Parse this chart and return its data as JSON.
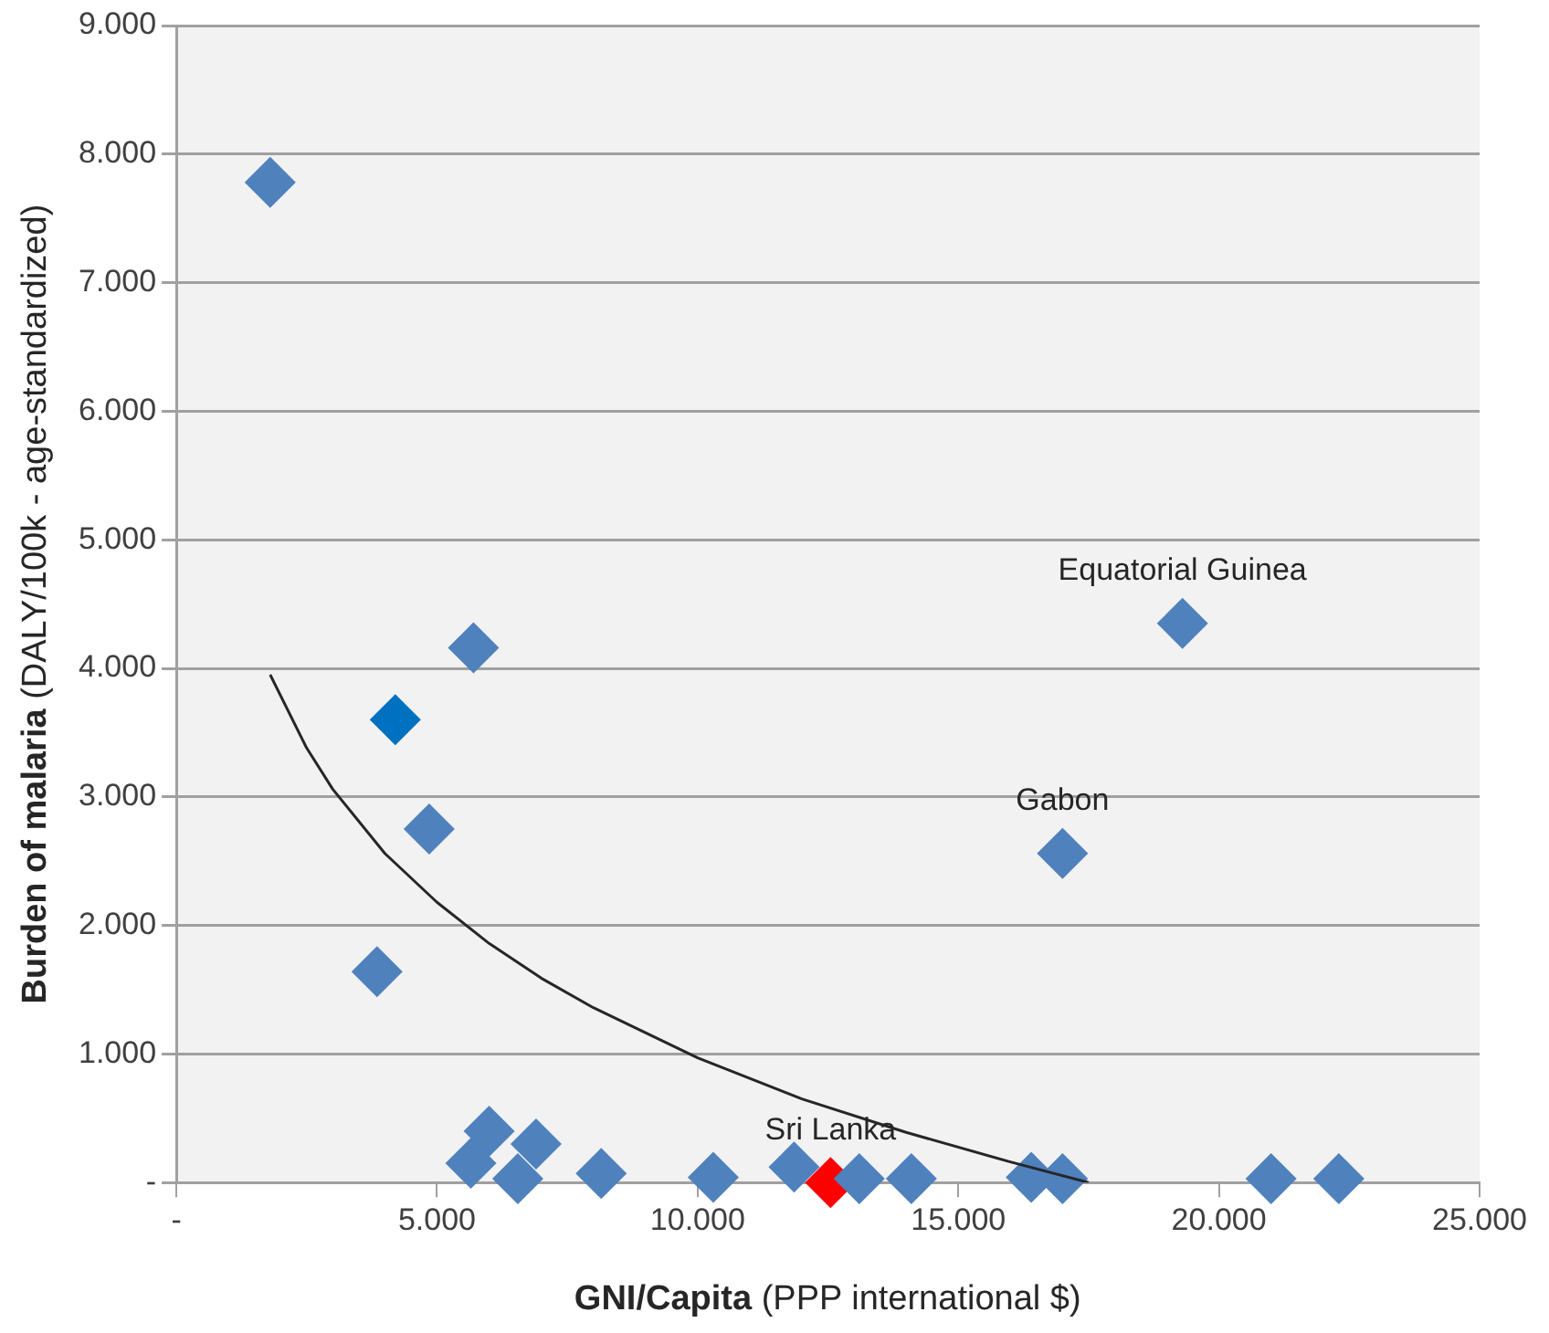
{
  "chart_data": {
    "type": "scatter",
    "xlabel": "GNI/Capita (PPP international $)",
    "ylabel": "Burden of malaria (DALY/100k - age-standardized)",
    "xlim": [
      0,
      25000
    ],
    "xticks": [
      {
        "value": 0,
        "label": "-"
      },
      {
        "value": 5000,
        "label": "5.000"
      },
      {
        "value": 10000,
        "label": "10.000"
      },
      {
        "value": 15000,
        "label": "15.000"
      },
      {
        "value": 20000,
        "label": "20.000"
      },
      {
        "value": 25000,
        "label": "25.000"
      }
    ],
    "ylim": [
      0,
      9000
    ],
    "yticks": [
      {
        "value": 0,
        "label": "-"
      },
      {
        "value": 1000,
        "label": "1.000"
      },
      {
        "value": 2000,
        "label": "2.000"
      },
      {
        "value": 3000,
        "label": "3.000"
      },
      {
        "value": 4000,
        "label": "4.000"
      },
      {
        "value": 5000,
        "label": "5.000"
      },
      {
        "value": 6000,
        "label": "6.000"
      },
      {
        "value": 7000,
        "label": "7.000"
      },
      {
        "value": 8000,
        "label": "8.000"
      },
      {
        "value": 9000,
        "label": "9.000"
      }
    ],
    "grid": "y",
    "legend": false,
    "marker": "diamond",
    "series": [
      {
        "x": [
          1800,
          4200,
          5700,
          4850,
          3850,
          19300,
          17000,
          6000,
          5650,
          6900,
          6550,
          8150,
          10300,
          11850,
          12550,
          13100,
          14100,
          16400,
          17000,
          21000,
          22300
        ],
        "values": [
          7780,
          3600,
          4160,
          2750,
          1640,
          4350,
          2560,
          400,
          150,
          300,
          30,
          70,
          40,
          120,
          0,
          30,
          30,
          40,
          30,
          30,
          30
        ],
        "colors": [
          "#4f81bd",
          "#0070c0",
          "#4f81bd",
          "#4f81bd",
          "#4f81bd",
          "#4f81bd",
          "#4f81bd",
          "#4f81bd",
          "#4f81bd",
          "#4f81bd",
          "#4f81bd",
          "#4f81bd",
          "#4f81bd",
          "#4f81bd",
          "#ff0000",
          "#4f81bd",
          "#4f81bd",
          "#4f81bd",
          "#4f81bd",
          "#4f81bd",
          "#4f81bd"
        ]
      },
      {
        "type": "line",
        "color": "#262626",
        "marker": "none",
        "line_style": "solid",
        "x": [
          1800,
          2500,
          3000,
          4000,
          5000,
          6000,
          7000,
          8000,
          10000,
          12000,
          14000,
          16000,
          17500
        ],
        "values": [
          3950,
          3380,
          3060,
          2560,
          2180,
          1860,
          1590,
          1360,
          970,
          650,
          390,
          160,
          0
        ]
      }
    ],
    "annotations": [
      {
        "text": "Equatorial Guinea",
        "x": 19300,
        "y": 4350
      },
      {
        "text": "Gabon",
        "x": 17000,
        "y": 2560
      },
      {
        "text": "Sri Lanka",
        "x": 12550,
        "y": 0
      }
    ]
  }
}
